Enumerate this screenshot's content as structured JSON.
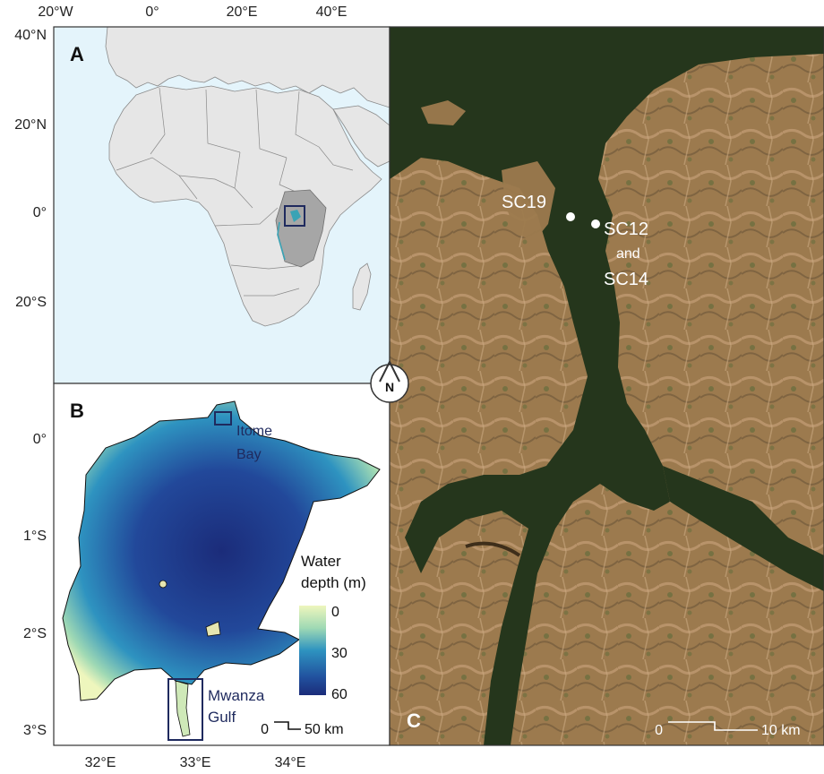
{
  "panel_a": {
    "label": "A",
    "lon_ticks": [
      "20°W",
      "0°",
      "20°E",
      "40°E"
    ],
    "lat_ticks": [
      "40°N",
      "20°N",
      "0°",
      "20°S"
    ]
  },
  "panel_b": {
    "label": "B",
    "lon_ticks": [
      "32°E",
      "33°E",
      "34°E"
    ],
    "lat_ticks": [
      "0°",
      "1°S",
      "2°S",
      "3°S"
    ],
    "places": {
      "itome_bay": [
        "Itome",
        "Bay"
      ],
      "mwanza_gulf": [
        "Mwanza",
        "Gulf"
      ]
    },
    "legend": {
      "title": [
        "Water",
        "depth (m)"
      ],
      "ticks": [
        "0",
        "30",
        "60"
      ]
    },
    "scale_bar": {
      "start": "0",
      "end": "50 km"
    }
  },
  "panel_c": {
    "label": "C",
    "sites": {
      "sc19": "SC19",
      "sc12": "SC12",
      "and": "and",
      "sc14": "SC14"
    },
    "scale_bar": {
      "start": "0",
      "end": "10 km"
    }
  },
  "north_arrow": {
    "label": "N"
  },
  "colors": {
    "ocean": "#e4f4fb",
    "land": "#e6e6e6",
    "tanzania": "#a6a6a6",
    "lake_deep": "#1b2c7a",
    "lake_mid": "#2e93c0",
    "lake_shallow": "#eef6bd",
    "satellite_water": "#25361c",
    "satellite_land": "#9c7a4e",
    "box": "#1f2a5e"
  }
}
